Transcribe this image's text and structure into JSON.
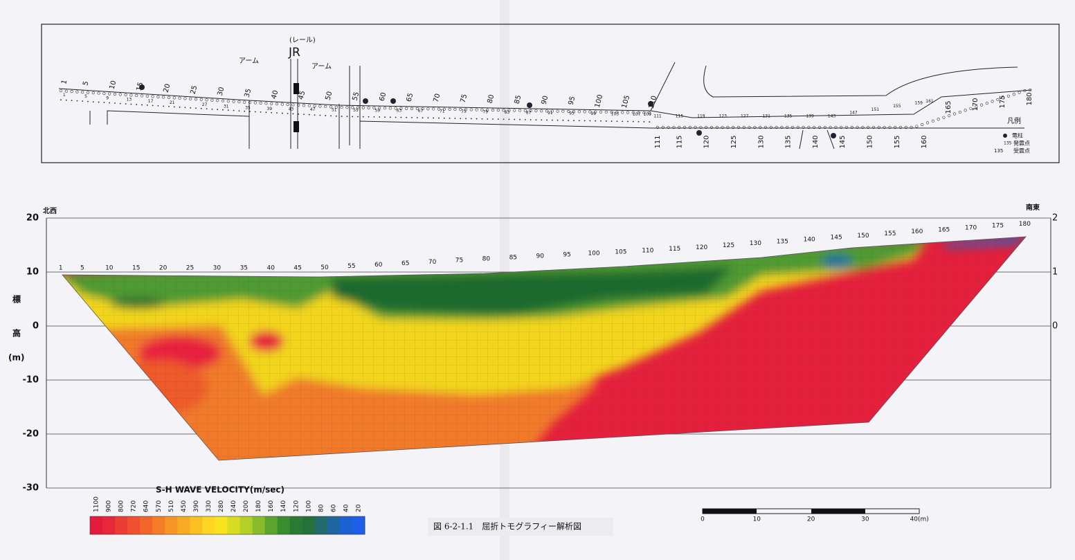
{
  "plan": {
    "arm_left": "アーム",
    "arm_right": "アーム",
    "rail": "(レール)",
    "jr": "JR",
    "upper_stations": [
      "1",
      "5",
      "10",
      "15",
      "20",
      "25",
      "30",
      "35",
      "40",
      "45",
      "50",
      "55",
      "60",
      "65",
      "70",
      "75",
      "80",
      "85",
      "90",
      "95",
      "100",
      "105",
      "110"
    ],
    "lower_stations": [
      "111",
      "115",
      "120",
      "125",
      "130",
      "135",
      "140",
      "145",
      "150",
      "155",
      "160"
    ],
    "right_stations": [
      "165",
      "170",
      "175",
      "180"
    ],
    "shot_points": [
      "1",
      "5",
      "9",
      "13",
      "17",
      "21",
      "27",
      "31",
      "35",
      "39",
      "43",
      "47",
      "51",
      "55",
      "59",
      "63",
      "67",
      "71",
      "75",
      "79",
      "83",
      "87",
      "91",
      "95",
      "99",
      "103",
      "107",
      "109",
      "111",
      "115",
      "119",
      "123",
      "127",
      "131",
      "135",
      "139",
      "143",
      "147",
      "151",
      "155",
      "159",
      "161"
    ],
    "legend": {
      "title": "凡例",
      "pole": "電柱",
      "shot_num": "135",
      "shot": "発震点",
      "recv_num": "135",
      "recv": "受震点"
    }
  },
  "section": {
    "left_label": "北西",
    "right_label": "南東",
    "yticks": [
      "20",
      "10",
      "0",
      "-10",
      "-20",
      "-30"
    ],
    "right_ticks": [
      "2",
      "1",
      "0"
    ],
    "ylabel": [
      "標",
      "高",
      "(m)"
    ],
    "stations": [
      "1",
      "5",
      "10",
      "15",
      "20",
      "25",
      "30",
      "35",
      "40",
      "45",
      "50",
      "55",
      "60",
      "65",
      "70",
      "75",
      "80",
      "85",
      "90",
      "95",
      "100",
      "105",
      "110",
      "115",
      "120",
      "125",
      "130",
      "135",
      "140",
      "145",
      "150",
      "155",
      "160",
      "165",
      "170",
      "175",
      "180"
    ]
  },
  "colorbar": {
    "title": "S-H WAVE VELOCITY(m/sec)",
    "labels": [
      "1100",
      "900",
      "800",
      "720",
      "640",
      "570",
      "510",
      "450",
      "390",
      "330",
      "280",
      "240",
      "200",
      "180",
      "160",
      "140",
      "120",
      "100",
      "80",
      "60",
      "40",
      "20"
    ]
  },
  "caption": "図 6-2-1.1　屈折トモグラフィー解析図",
  "scalebar": [
    "0",
    "10",
    "20",
    "30",
    "40(m)"
  ]
}
